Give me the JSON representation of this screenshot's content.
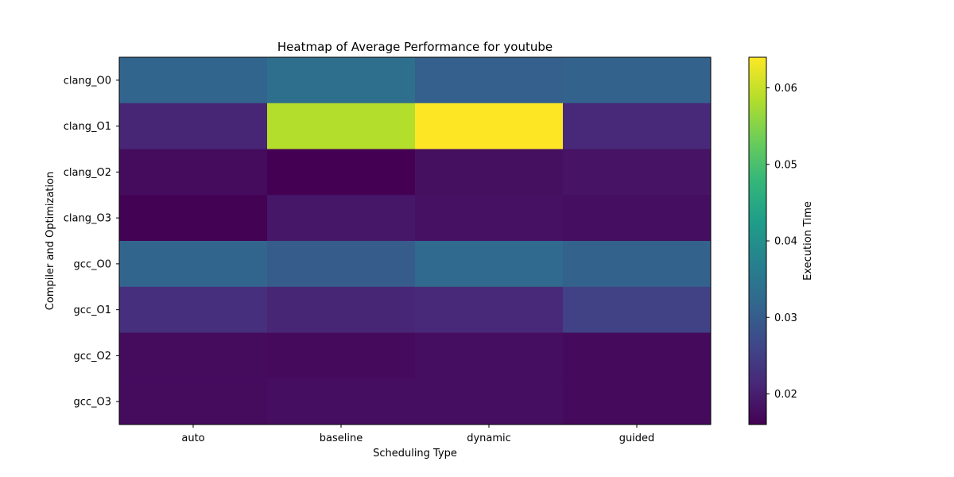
{
  "chart_data": {
    "type": "heatmap",
    "title": "Heatmap of Average Performance for youtube",
    "xlabel": "Scheduling Type",
    "ylabel": "Compiler and Optimization",
    "x_categories": [
      "auto",
      "baseline",
      "dynamic",
      "guided"
    ],
    "y_categories": [
      "clang_O0",
      "clang_O1",
      "clang_O2",
      "clang_O3",
      "gcc_O0",
      "gcc_O1",
      "gcc_O2",
      "gcc_O3"
    ],
    "values": [
      [
        0.0315,
        0.0335,
        0.0305,
        0.031
      ],
      [
        0.021,
        0.0585,
        0.064,
        0.0215
      ],
      [
        0.0175,
        0.016,
        0.018,
        0.0185
      ],
      [
        0.0162,
        0.019,
        0.0182,
        0.0178
      ],
      [
        0.0315,
        0.03,
        0.0325,
        0.031
      ],
      [
        0.0225,
        0.021,
        0.0215,
        0.0255
      ],
      [
        0.0175,
        0.0172,
        0.0178,
        0.0172
      ],
      [
        0.0175,
        0.0178,
        0.0178,
        0.0172
      ]
    ],
    "colorbar": {
      "label": "Execution Time",
      "range": [
        0.016,
        0.064
      ],
      "ticks": [
        0.02,
        0.03,
        0.04,
        0.05,
        0.06
      ],
      "tick_labels": [
        "0.02",
        "0.03",
        "0.04",
        "0.05",
        "0.06"
      ]
    },
    "colormap": "viridis",
    "colormap_stops": [
      "#440154",
      "#482878",
      "#3e4989",
      "#31688e",
      "#26828e",
      "#1f9e89",
      "#35b779",
      "#6ece58",
      "#b5de2b",
      "#fde725"
    ],
    "grid": false
  }
}
